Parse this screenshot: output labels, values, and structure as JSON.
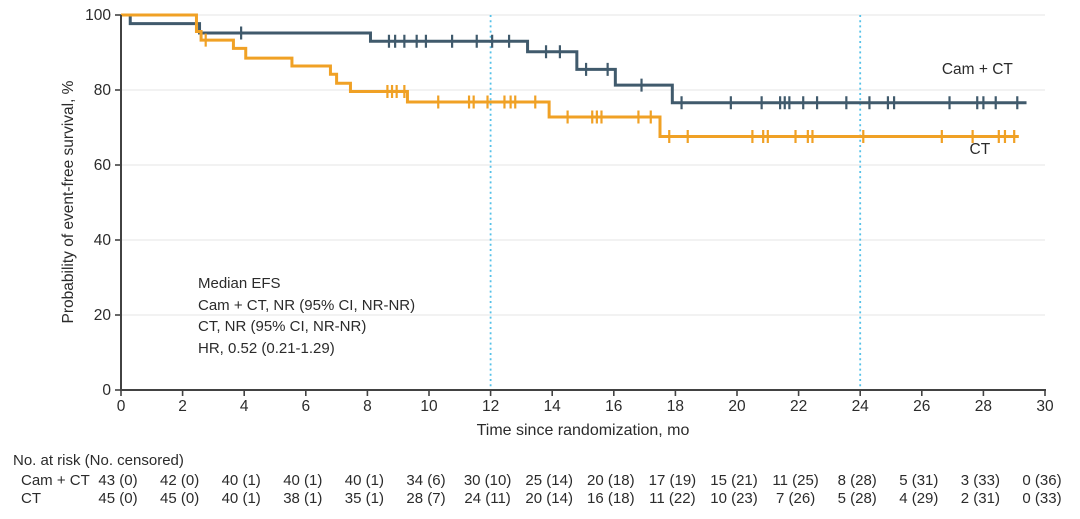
{
  "chart_data": {
    "type": "line",
    "subtype": "kaplan-meier-step",
    "title": "",
    "xlabel": "Time since randomization, mo",
    "ylabel": "Probability of event-free survival, %",
    "xlim": [
      0,
      30
    ],
    "ylim": [
      0,
      100
    ],
    "xticks": [
      0,
      2,
      4,
      6,
      8,
      10,
      12,
      14,
      16,
      18,
      20,
      22,
      24,
      26,
      28,
      30
    ],
    "yticks": [
      0,
      20,
      40,
      60,
      80,
      100
    ],
    "grid": "horizontal",
    "reference_lines_x": [
      12,
      24
    ],
    "series": [
      {
        "name": "Cam + CT",
        "color": "#405A6C",
        "steps": [
          [
            0,
            100
          ],
          [
            0.3,
            97.7
          ],
          [
            2.55,
            95.2
          ],
          [
            8.1,
            93.0
          ],
          [
            13.2,
            90.2
          ],
          [
            14.8,
            85.5
          ],
          [
            16.05,
            81.3
          ],
          [
            17.9,
            76.6
          ]
        ],
        "end_time": 29.4,
        "censor_times": [
          3.9,
          8.7,
          8.9,
          9.2,
          9.6,
          9.9,
          10.75,
          11.55,
          12.05,
          12.6,
          13.8,
          14.25,
          15.1,
          15.8,
          16.9,
          18.2,
          19.8,
          20.8,
          21.4,
          21.55,
          21.7,
          22.15,
          22.6,
          23.55,
          24.3,
          24.9,
          25.1,
          26.9,
          27.8,
          28.0,
          28.4,
          29.1
        ],
        "label": {
          "text": "Cam + CT",
          "x": 26.65,
          "y": 84.3
        }
      },
      {
        "name": "CT",
        "color": "#F0A125",
        "steps": [
          [
            0,
            100
          ],
          [
            2.45,
            95.6
          ],
          [
            2.6,
            93.3
          ],
          [
            3.65,
            91.1
          ],
          [
            4.05,
            88.5
          ],
          [
            5.55,
            86.4
          ],
          [
            6.8,
            84.2
          ],
          [
            7.0,
            81.8
          ],
          [
            7.45,
            79.6
          ],
          [
            9.3,
            76.8
          ],
          [
            13.9,
            72.8
          ],
          [
            17.5,
            67.6
          ]
        ],
        "end_time": 29.15,
        "censor_times": [
          2.75,
          8.65,
          8.8,
          8.95,
          9.2,
          10.3,
          11.3,
          11.45,
          11.9,
          12.45,
          12.65,
          12.8,
          13.45,
          14.5,
          15.3,
          15.45,
          15.6,
          16.8,
          17.2,
          17.8,
          18.4,
          20.5,
          20.85,
          21.0,
          21.9,
          22.3,
          22.45,
          24.1,
          26.65,
          27.65,
          28.5,
          28.7,
          29.0
        ],
        "label": {
          "text": "CT",
          "x": 27.55,
          "y": 63.0
        }
      }
    ],
    "annotation": {
      "lines": [
        "Median EFS",
        "Cam + CT, NR (95% CI, NR-NR)",
        "CT, NR (95% CI, NR-NR)",
        "HR, 0.52 (0.21-1.29)"
      ]
    },
    "colors": {
      "axis": "#424242",
      "grid": "#ededed",
      "reference_line": "#56C1E8",
      "text": "#2b2b2b"
    }
  },
  "risk_table": {
    "title": "No. at risk (No. censored)",
    "times": [
      0,
      2,
      4,
      6,
      8,
      10,
      12,
      14,
      16,
      18,
      20,
      22,
      24,
      26,
      28,
      30
    ],
    "rows": [
      {
        "label": "Cam + CT",
        "values": [
          "43 (0)",
          "42 (0)",
          "40 (1)",
          "40 (1)",
          "40 (1)",
          "34 (6)",
          "30 (10)",
          "25 (14)",
          "20 (18)",
          "17 (19)",
          "15 (21)",
          "11 (25)",
          "8 (28)",
          "5 (31)",
          "3 (33)",
          "0 (36)"
        ]
      },
      {
        "label": "CT",
        "values": [
          "45 (0)",
          "45 (0)",
          "40 (1)",
          "38 (1)",
          "35 (1)",
          "28 (7)",
          "24 (11)",
          "20 (14)",
          "16 (18)",
          "11 (22)",
          "10 (23)",
          "7 (26)",
          "5 (28)",
          "4 (29)",
          "2 (31)",
          "0 (33)"
        ]
      }
    ]
  }
}
